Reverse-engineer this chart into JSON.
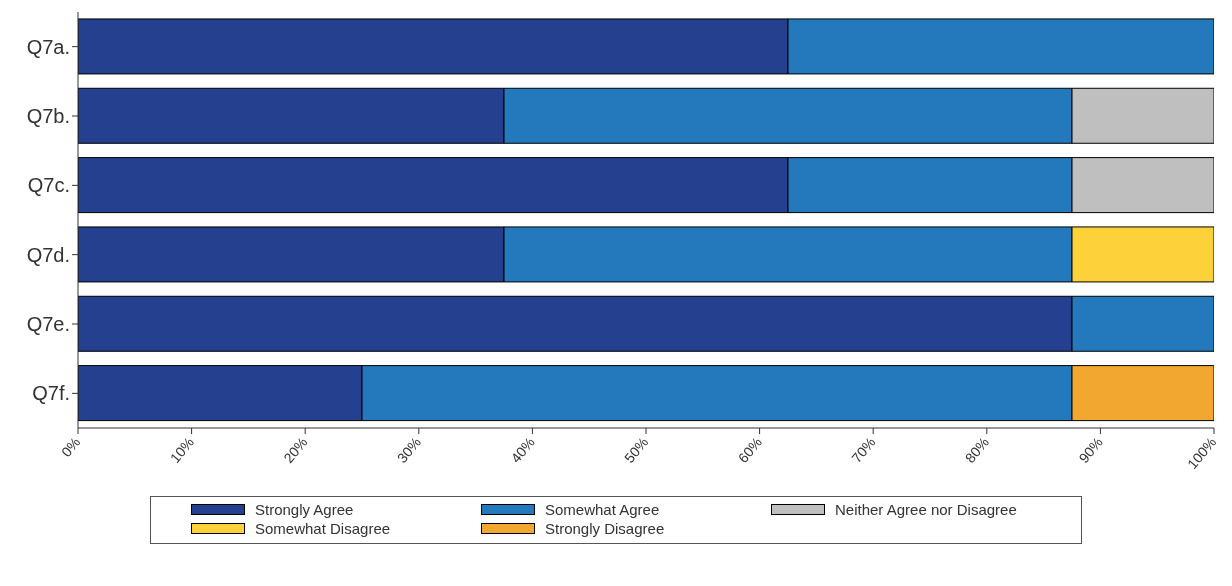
{
  "chart_data": {
    "type": "bar",
    "orientation": "horizontal",
    "stacked": true,
    "categories": [
      "Q7a.",
      "Q7b.",
      "Q7c.",
      "Q7d.",
      "Q7e.",
      "Q7f."
    ],
    "series": [
      {
        "name": "Strongly Agree",
        "color": "#25408f",
        "values": [
          62.5,
          37.5,
          62.5,
          37.5,
          87.5,
          25
        ]
      },
      {
        "name": "Somewhat Agree",
        "color": "#2479bd",
        "values": [
          37.5,
          50,
          25,
          50,
          12.5,
          62.5
        ]
      },
      {
        "name": "Neither Agree nor Disagree",
        "color": "#bfbfbf",
        "values": [
          null,
          12.5,
          12.5,
          null,
          null,
          null
        ]
      },
      {
        "name": "Somewhat Disagree",
        "color": "#fdd13a",
        "values": [
          null,
          null,
          null,
          12.5,
          null,
          null
        ]
      },
      {
        "name": "Strongly Disagree",
        "color": "#f2a731",
        "values": [
          null,
          null,
          null,
          null,
          null,
          12.5
        ]
      }
    ],
    "xlim": [
      0,
      100
    ],
    "xticks": [
      {
        "value": 0,
        "label": "0%"
      },
      {
        "value": 10,
        "label": "10%"
      },
      {
        "value": 20,
        "label": "20%"
      },
      {
        "value": 30,
        "label": "30%"
      },
      {
        "value": 40,
        "label": "40%"
      },
      {
        "value": 50,
        "label": "50%"
      },
      {
        "value": 60,
        "label": "60%"
      },
      {
        "value": 70,
        "label": "70%"
      },
      {
        "value": 80,
        "label": "80%"
      },
      {
        "value": 90,
        "label": "90%"
      },
      {
        "value": 100,
        "label": "100%"
      }
    ],
    "grid": false,
    "legend": "bottom"
  }
}
